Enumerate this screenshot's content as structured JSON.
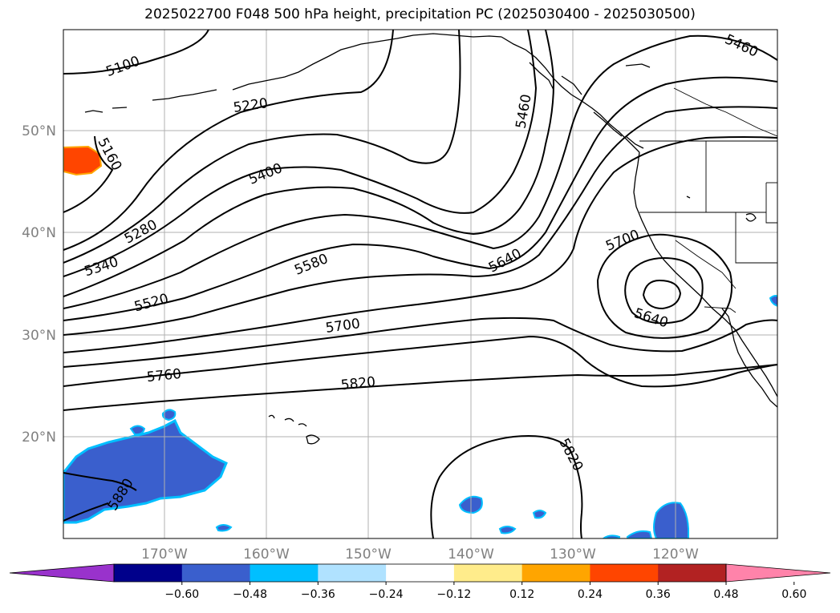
{
  "title": "2025022700 F048 500 hPa height, precipitation PC (2025030400 - 2025030500)",
  "map": {
    "lat_labels": [
      "50°N",
      "40°N",
      "30°N",
      "20°N"
    ],
    "lon_labels": [
      "170°W",
      "160°W",
      "150°W",
      "140°W",
      "130°W",
      "120°W"
    ],
    "contour_labels": [
      "5100",
      "5220",
      "5160",
      "5400",
      "5280",
      "5340",
      "5520",
      "5580",
      "5640",
      "5700",
      "5760",
      "5820",
      "5880",
      "5460",
      "5460",
      "5700",
      "5640",
      "5820"
    ],
    "grid_color": "#b0b0b0",
    "land_outline": "#000000"
  },
  "colorbar": {
    "ticks": [
      "−0.60",
      "−0.48",
      "−0.36",
      "−0.24",
      "−0.12",
      "0.12",
      "0.24",
      "0.36",
      "0.48",
      "0.60"
    ],
    "colors": [
      "#9932cc",
      "#00008b",
      "#3a5fcd",
      "#00bfff",
      "#b0e2ff",
      "#ffffff",
      "#ffec8b",
      "#ffa500",
      "#ff4500",
      "#b22222",
      "#ff83aa"
    ]
  }
}
